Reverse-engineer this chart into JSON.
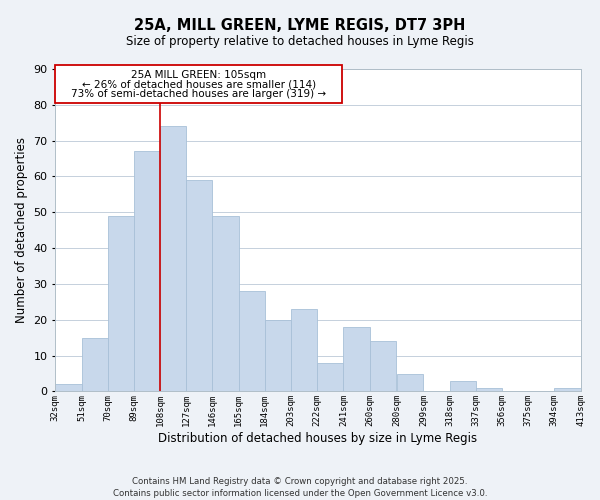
{
  "title": "25A, MILL GREEN, LYME REGIS, DT7 3PH",
  "subtitle": "Size of property relative to detached houses in Lyme Regis",
  "xlabel": "Distribution of detached houses by size in Lyme Regis",
  "ylabel": "Number of detached properties",
  "bar_color": "#c8d8eb",
  "bar_edge_color": "#a8c0d8",
  "vline_x": 108,
  "vline_color": "#cc0000",
  "bin_edges": [
    32,
    51,
    70,
    89,
    108,
    127,
    146,
    165,
    184,
    203,
    222,
    241,
    260,
    280,
    299,
    318,
    337,
    356,
    375,
    394,
    413
  ],
  "bin_labels": [
    "32sqm",
    "51sqm",
    "70sqm",
    "89sqm",
    "108sqm",
    "127sqm",
    "146sqm",
    "165sqm",
    "184sqm",
    "203sqm",
    "222sqm",
    "241sqm",
    "260sqm",
    "280sqm",
    "299sqm",
    "318sqm",
    "337sqm",
    "356sqm",
    "375sqm",
    "394sqm",
    "413sqm"
  ],
  "counts": [
    2,
    15,
    49,
    67,
    74,
    59,
    49,
    28,
    20,
    23,
    8,
    18,
    14,
    5,
    0,
    3,
    1,
    0,
    0,
    1
  ],
  "ylim": [
    0,
    90
  ],
  "yticks": [
    0,
    10,
    20,
    30,
    40,
    50,
    60,
    70,
    80,
    90
  ],
  "annotation_line1": "25A MILL GREEN: 105sqm",
  "annotation_line2": "← 26% of detached houses are smaller (114)",
  "annotation_line3": "73% of semi-detached houses are larger (319) →",
  "footer_line1": "Contains HM Land Registry data © Crown copyright and database right 2025.",
  "footer_line2": "Contains public sector information licensed under the Open Government Licence v3.0.",
  "bg_color": "#eef2f7",
  "plot_bg_color": "#ffffff",
  "grid_color": "#c5d0dc"
}
